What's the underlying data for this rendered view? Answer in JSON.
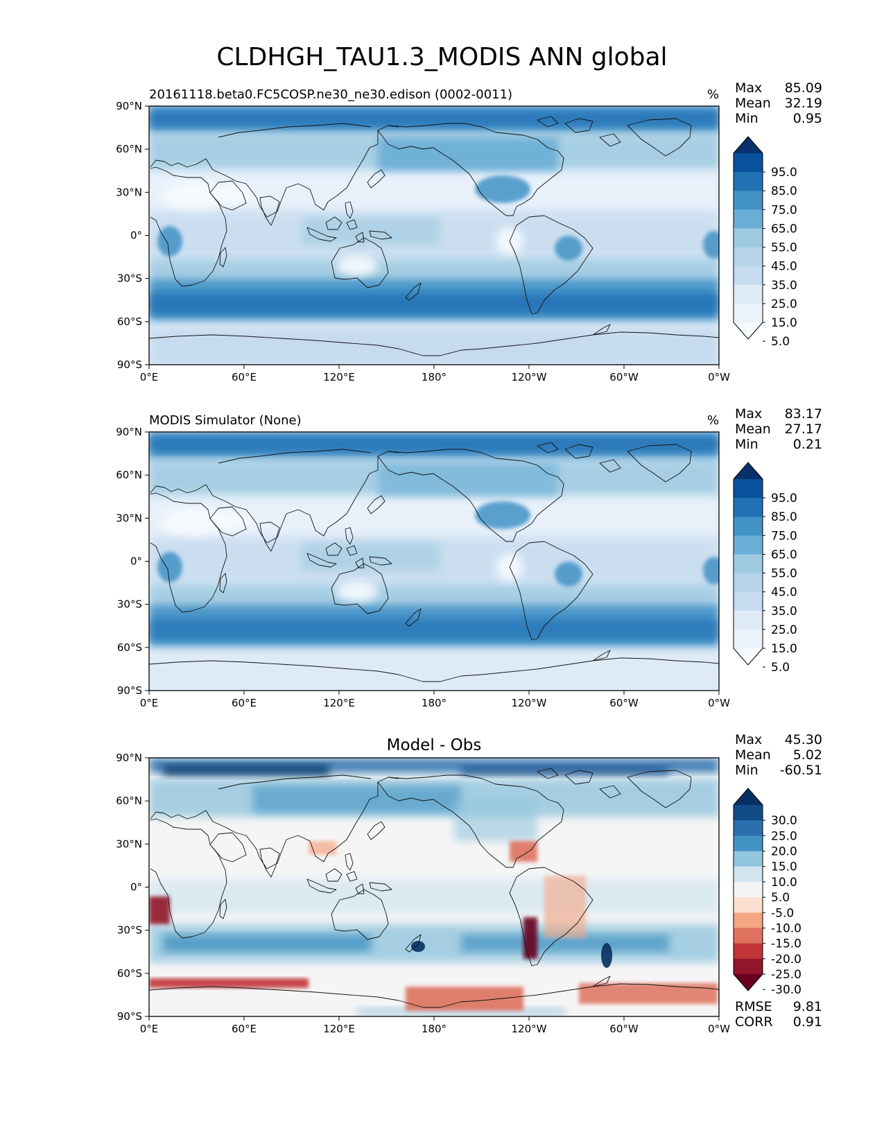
{
  "title": "CLDHGH_TAU1.3_MODIS ANN global",
  "x_ticks": [
    "0°E",
    "60°E",
    "120°E",
    "180°",
    "120°W",
    "60°W",
    "0°W"
  ],
  "y_ticks": [
    "90°N",
    "60°N",
    "30°N",
    "0°",
    "30°S",
    "60°S",
    "90°S"
  ],
  "panels": [
    {
      "name": "test",
      "title_left": "20161118.beta0.FC5COSP.ne30_ne30.edison (0002-0011)",
      "title_center": "",
      "units": "%",
      "stats": [
        {
          "label": "Max",
          "value": "85.09"
        },
        {
          "label": "Mean",
          "value": "32.19"
        },
        {
          "label": "Min",
          "value": "0.95"
        }
      ],
      "colorbar_labels": [
        "95.0",
        "85.0",
        "75.0",
        "65.0",
        "55.0",
        "45.0",
        "35.0",
        "25.0",
        "15.0",
        "5.0"
      ],
      "colorbar_colors": [
        "#08306b",
        "#08519c",
        "#2171b5",
        "#4292c6",
        "#6baed6",
        "#9ecae1",
        "#b7d4ea",
        "#c6dbef",
        "#deebf7",
        "#eaf2fb",
        "#f7fbff"
      ],
      "extra_stats": []
    },
    {
      "name": "reference",
      "title_left": "MODIS Simulator (None)",
      "title_center": "",
      "units": "%",
      "stats": [
        {
          "label": "Max",
          "value": "83.17"
        },
        {
          "label": "Mean",
          "value": "27.17"
        },
        {
          "label": "Min",
          "value": "0.21"
        }
      ],
      "colorbar_labels": [
        "95.0",
        "85.0",
        "75.0",
        "65.0",
        "55.0",
        "45.0",
        "35.0",
        "25.0",
        "15.0",
        "5.0"
      ],
      "colorbar_colors": [
        "#08306b",
        "#08519c",
        "#2171b5",
        "#4292c6",
        "#6baed6",
        "#9ecae1",
        "#b7d4ea",
        "#c6dbef",
        "#deebf7",
        "#eaf2fb",
        "#f7fbff"
      ],
      "extra_stats": []
    },
    {
      "name": "difference",
      "title_left": "",
      "title_center": "Model - Obs",
      "units": "",
      "stats": [
        {
          "label": "Max",
          "value": "45.30"
        },
        {
          "label": "Mean",
          "value": "5.02"
        },
        {
          "label": "Min",
          "value": "-60.51"
        }
      ],
      "colorbar_labels": [
        "30.0",
        "25.0",
        "20.0",
        "15.0",
        "10.0",
        "5.0",
        "-5.0",
        "-10.0",
        "-15.0",
        "-20.0",
        "-25.0",
        "-30.0"
      ],
      "colorbar_colors": [
        "#053061",
        "#134b87",
        "#2c6fae",
        "#4393c3",
        "#92c5de",
        "#d1e5f0",
        "#f5f5f5",
        "#fbe0d2",
        "#f4a582",
        "#de725f",
        "#c13539",
        "#92152a",
        "#67001f"
      ],
      "extra_stats": [
        {
          "label": "RMSE",
          "value": "9.81"
        },
        {
          "label": "CORR",
          "value": "0.91"
        }
      ]
    }
  ]
}
